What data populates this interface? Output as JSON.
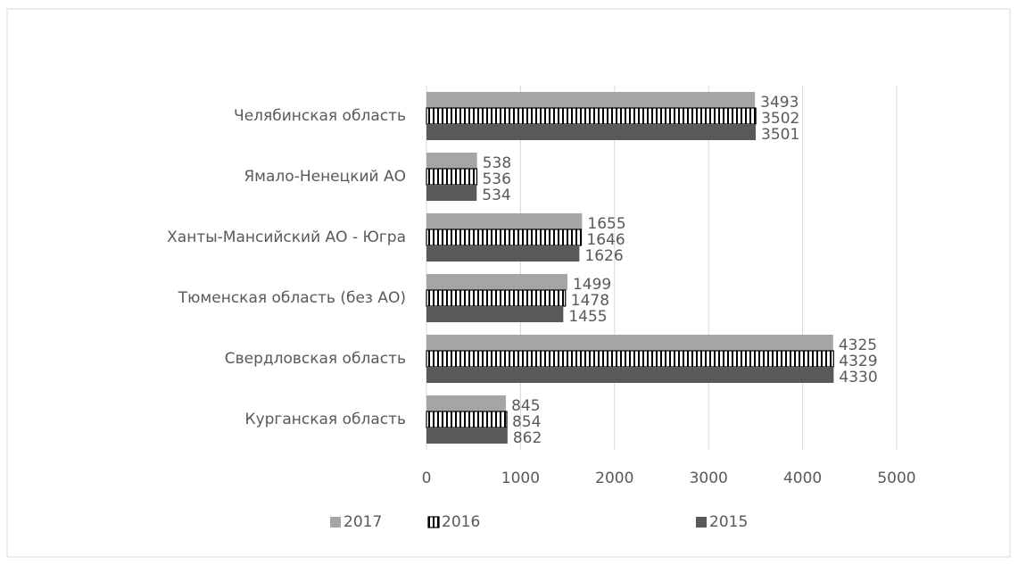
{
  "chart_data": {
    "type": "hbar",
    "categories": [
      "Челябинская область",
      "Ямало-Ненецкий АО",
      "Ханты-Мансийский АО - Югра",
      "Тюменская область (без АО)",
      "Свердловская область",
      "Курганская область"
    ],
    "series": [
      {
        "name": "2017",
        "color": "#a5a5a5",
        "values": [
          3493,
          538,
          1655,
          1499,
          4325,
          845
        ]
      },
      {
        "name": "2016",
        "color": "#ffffff",
        "hatch": "vertical",
        "values": [
          3502,
          536,
          1646,
          1478,
          4329,
          854
        ]
      },
      {
        "name": "2015",
        "color": "#595959",
        "values": [
          3501,
          534,
          1626,
          1455,
          4330,
          862
        ]
      }
    ],
    "xlim": [
      0,
      5000
    ],
    "xticks": [
      0,
      1000,
      2000,
      3000,
      4000,
      5000
    ],
    "grid": true,
    "legend": "bottom"
  }
}
